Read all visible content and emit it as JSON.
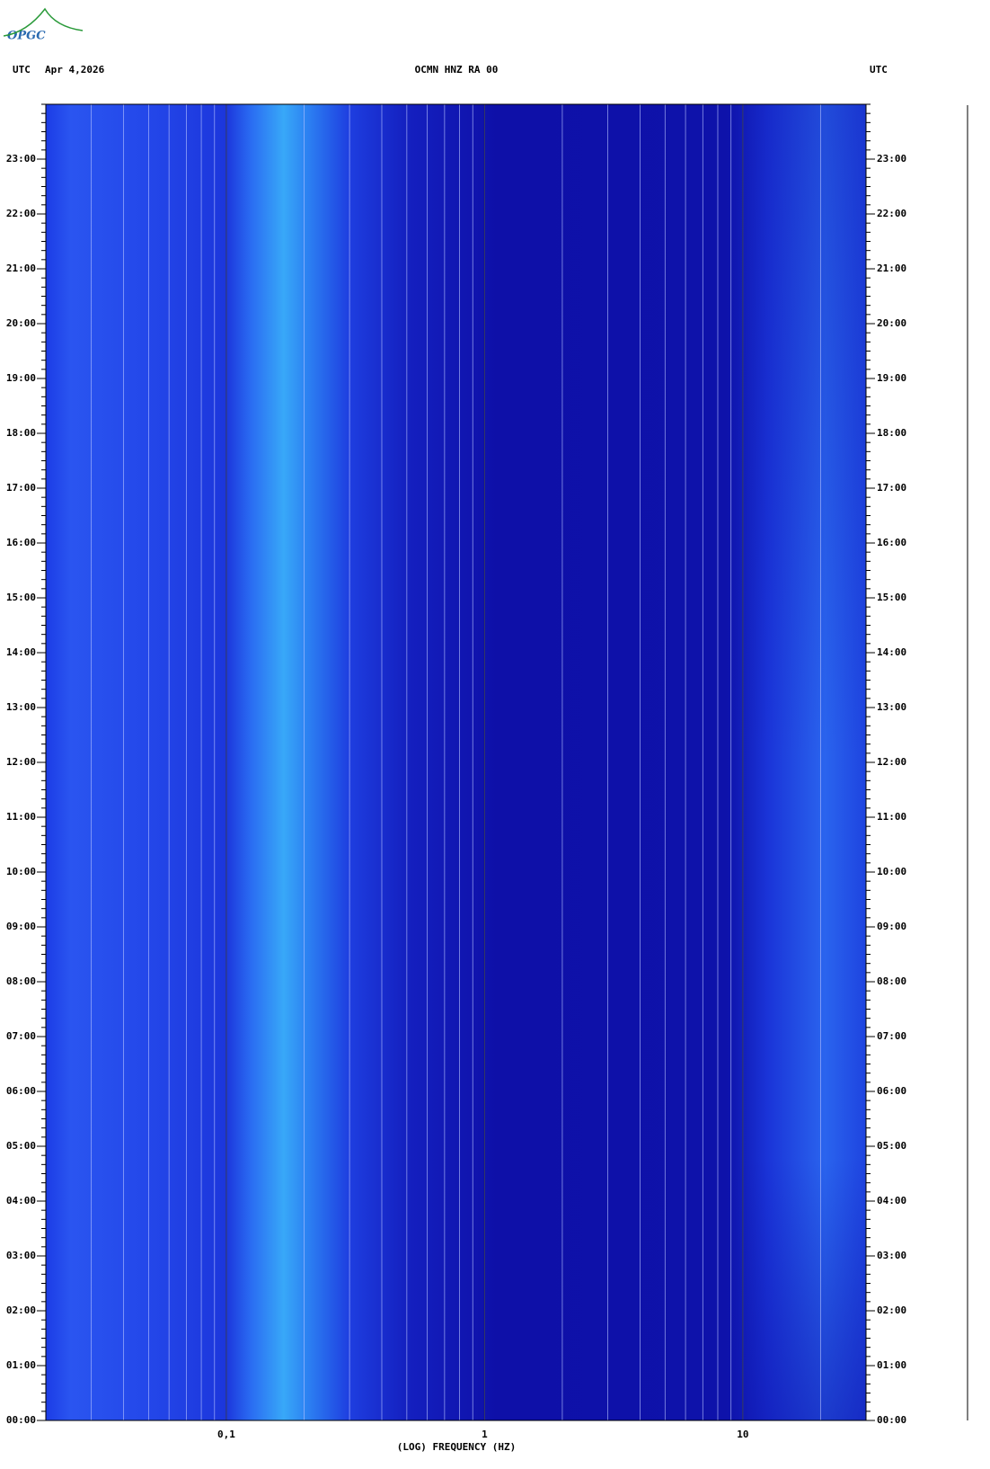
{
  "logo": "OPGC",
  "chart_data": {
    "type": "spectrogram",
    "title": "OCMN HNZ RA 00",
    "left_label": "UTC",
    "date": "Apr 4,2026",
    "right_label": "UTC",
    "xlabel": "(LOG) FREQUENCY (HZ)",
    "xscale": "log",
    "xlim": [
      0.02,
      30
    ],
    "xticks": [
      {
        "value": 0.1,
        "label": "0,1"
      },
      1,
      10
    ],
    "ylim": [
      0,
      24
    ],
    "yticks": [
      {
        "value": 0,
        "label": "00:00"
      },
      {
        "value": 1,
        "label": "01:00"
      },
      {
        "value": 2,
        "label": "02:00"
      },
      {
        "value": 3,
        "label": "03:00"
      },
      {
        "value": 4,
        "label": "04:00"
      },
      {
        "value": 5,
        "label": "05:00"
      },
      {
        "value": 6,
        "label": "06:00"
      },
      {
        "value": 7,
        "label": "07:00"
      },
      {
        "value": 8,
        "label": "08:00"
      },
      {
        "value": 9,
        "label": "09:00"
      },
      {
        "value": 10,
        "label": "10:00"
      },
      {
        "value": 11,
        "label": "11:00"
      },
      {
        "value": 12,
        "label": "12:00"
      },
      {
        "value": 13,
        "label": "13:00"
      },
      {
        "value": 14,
        "label": "14:00"
      },
      {
        "value": 15,
        "label": "15:00"
      },
      {
        "value": 16,
        "label": "16:00"
      },
      {
        "value": 17,
        "label": "17:00"
      },
      {
        "value": 18,
        "label": "18:00"
      },
      {
        "value": 19,
        "label": "19:00"
      },
      {
        "value": 20,
        "label": "20:00"
      },
      {
        "value": 21,
        "label": "21:00"
      },
      {
        "value": 22,
        "label": "22:00"
      },
      {
        "value": 23,
        "label": "23:00"
      }
    ],
    "grid": true
  }
}
